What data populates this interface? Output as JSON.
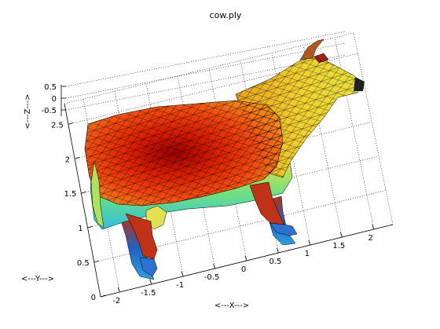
{
  "chart_data": {
    "type": "surface",
    "title": "cow.ply",
    "xlabel": "<---X--->",
    "ylabel": "<---Y--->",
    "zlabel": "<---Z--->",
    "x_ticks": [
      "-2",
      "-1.5",
      "-1",
      "-0.5",
      "0",
      "0.5",
      "1",
      "1.5",
      "2"
    ],
    "y_ticks": [
      "0",
      "0.5",
      "1",
      "1.5",
      "2",
      "2.5"
    ],
    "z_ticks": [
      "0.5",
      "0",
      "-0.5"
    ],
    "xlim": [
      -2.3,
      2.3
    ],
    "ylim": [
      0,
      2.8
    ],
    "zlim": [
      -0.8,
      0.6
    ],
    "grid": true,
    "box": true,
    "colormap": "jet",
    "mesh": "triangulated",
    "edge_color": "#000000"
  }
}
